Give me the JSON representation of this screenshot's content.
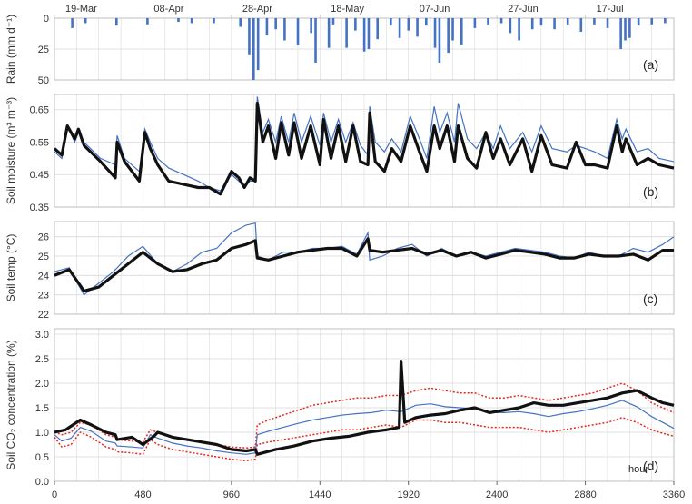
{
  "colors": {
    "bars": "#4472C4",
    "model": "#4472C4",
    "observed": "#111111",
    "uncertainty": "#E8251B",
    "grid": "#d9d9d9",
    "frame": "#bfbfbf",
    "date_grid": "#c8c8c8"
  },
  "x_axis": {
    "label": "hour",
    "range": [
      0,
      3360
    ],
    "ticks": [
      0,
      480,
      960,
      1440,
      1920,
      2400,
      2880,
      3360
    ],
    "date_ticks": [
      "19-Mar",
      "08-Apr",
      "28-Apr",
      "18-May",
      "07-Jun",
      "27-Jun",
      "17-Jul"
    ],
    "date_tick_hours": [
      0,
      480,
      960,
      1440,
      1920,
      2400,
      2880
    ]
  },
  "chart_data": [
    {
      "type": "bar",
      "panel": "(a)",
      "ylabel": "Rain (mm d⁻¹)",
      "ylim": [
        0,
        50
      ],
      "yticks": [
        0,
        25,
        50
      ],
      "inverted": true,
      "x_unit": "hour",
      "x": [
        96,
        168,
        336,
        504,
        672,
        744,
        864,
        1008,
        1056,
        1080,
        1104,
        1152,
        1200,
        1248,
        1320,
        1392,
        1416,
        1488,
        1512,
        1584,
        1632,
        1680,
        1704,
        1752,
        1824,
        1872,
        1920,
        1968,
        2016,
        2064,
        2088,
        2136,
        2160,
        2208,
        2280,
        2352,
        2424,
        2472,
        2520,
        2592,
        2640,
        2712,
        2784,
        2856,
        2928,
        3000,
        3072,
        3096,
        3120,
        3168,
        3240,
        3312
      ],
      "values": [
        8,
        4,
        6,
        5,
        3,
        4,
        4,
        7,
        30,
        50,
        42,
        14,
        9,
        18,
        22,
        12,
        36,
        24,
        5,
        24,
        10,
        27,
        25,
        17,
        6,
        16,
        10,
        15,
        6,
        24,
        36,
        28,
        18,
        22,
        8,
        5,
        4,
        12,
        18,
        9,
        6,
        9,
        5,
        11,
        5,
        8,
        25,
        18,
        16,
        6,
        5,
        4
      ]
    },
    {
      "type": "line",
      "panel": "(b)",
      "ylabel": "Soil moisture (m³ m⁻³)",
      "ylim": [
        0.35,
        0.68
      ],
      "yticks": [
        0.35,
        0.45,
        0.55,
        0.65
      ],
      "series": [
        {
          "style": "model",
          "x": [
            0,
            40,
            70,
            110,
            130,
            160,
            250,
            330,
            340,
            380,
            460,
            490,
            520,
            560,
            620,
            700,
            780,
            840,
            900,
            960,
            1000,
            1030,
            1060,
            1090,
            1100,
            1130,
            1160,
            1200,
            1230,
            1270,
            1300,
            1340,
            1390,
            1440,
            1460,
            1500,
            1540,
            1580,
            1620,
            1660,
            1700,
            1710,
            1740,
            1790,
            1830,
            1880,
            1930,
            1980,
            2020,
            2060,
            2090,
            2130,
            2170,
            2190,
            2240,
            2290,
            2340,
            2380,
            2420,
            2470,
            2540,
            2590,
            2640,
            2700,
            2780,
            2830,
            2880,
            2930,
            3000,
            3050,
            3080,
            3100,
            3160,
            3220,
            3280,
            3360
          ],
          "y": [
            0.52,
            0.5,
            0.6,
            0.55,
            0.58,
            0.55,
            0.5,
            0.48,
            0.57,
            0.5,
            0.46,
            0.59,
            0.55,
            0.5,
            0.47,
            0.45,
            0.43,
            0.41,
            0.4,
            0.45,
            0.43,
            0.41,
            0.43,
            0.43,
            0.69,
            0.58,
            0.62,
            0.55,
            0.63,
            0.55,
            0.64,
            0.55,
            0.63,
            0.54,
            0.64,
            0.55,
            0.62,
            0.55,
            0.61,
            0.54,
            0.51,
            0.66,
            0.55,
            0.52,
            0.56,
            0.52,
            0.63,
            0.56,
            0.5,
            0.66,
            0.58,
            0.64,
            0.55,
            0.67,
            0.56,
            0.53,
            0.58,
            0.53,
            0.6,
            0.53,
            0.58,
            0.52,
            0.6,
            0.53,
            0.52,
            0.54,
            0.53,
            0.52,
            0.5,
            0.62,
            0.56,
            0.59,
            0.52,
            0.53,
            0.5,
            0.49
          ]
        },
        {
          "style": "observed",
          "x": [
            0,
            40,
            70,
            110,
            130,
            160,
            250,
            330,
            340,
            380,
            460,
            490,
            520,
            560,
            620,
            700,
            780,
            840,
            900,
            960,
            1000,
            1030,
            1060,
            1090,
            1100,
            1130,
            1160,
            1200,
            1230,
            1270,
            1300,
            1340,
            1390,
            1440,
            1460,
            1500,
            1540,
            1580,
            1620,
            1660,
            1700,
            1710,
            1740,
            1790,
            1830,
            1880,
            1930,
            1980,
            2020,
            2060,
            2090,
            2130,
            2170,
            2190,
            2240,
            2290,
            2340,
            2380,
            2420,
            2470,
            2540,
            2590,
            2640,
            2700,
            2780,
            2830,
            2880,
            2930,
            3000,
            3050,
            3080,
            3100,
            3160,
            3220,
            3280,
            3360
          ],
          "y": [
            0.53,
            0.51,
            0.6,
            0.56,
            0.59,
            0.54,
            0.49,
            0.44,
            0.55,
            0.49,
            0.43,
            0.58,
            0.53,
            0.48,
            0.43,
            0.42,
            0.41,
            0.41,
            0.39,
            0.46,
            0.44,
            0.41,
            0.44,
            0.43,
            0.67,
            0.55,
            0.6,
            0.5,
            0.61,
            0.51,
            0.61,
            0.5,
            0.6,
            0.48,
            0.62,
            0.5,
            0.6,
            0.49,
            0.6,
            0.49,
            0.48,
            0.64,
            0.49,
            0.46,
            0.53,
            0.49,
            0.6,
            0.52,
            0.46,
            0.6,
            0.53,
            0.6,
            0.49,
            0.6,
            0.5,
            0.47,
            0.58,
            0.5,
            0.56,
            0.48,
            0.56,
            0.46,
            0.57,
            0.48,
            0.47,
            0.55,
            0.48,
            0.48,
            0.47,
            0.6,
            0.52,
            0.56,
            0.48,
            0.5,
            0.48,
            0.47
          ]
        }
      ]
    },
    {
      "type": "line",
      "panel": "(c)",
      "ylabel": "Soil temp (°C)",
      "ylim": [
        22,
        26.5
      ],
      "yticks": [
        22,
        23,
        24,
        25,
        26
      ],
      "series": [
        {
          "style": "model",
          "x": [
            0,
            80,
            160,
            240,
            320,
            400,
            480,
            560,
            640,
            720,
            800,
            880,
            960,
            1040,
            1090,
            1100,
            1160,
            1240,
            1320,
            1400,
            1480,
            1560,
            1640,
            1700,
            1710,
            1780,
            1860,
            1940,
            2020,
            2100,
            2180,
            2260,
            2340,
            2420,
            2500,
            2580,
            2660,
            2740,
            2820,
            2900,
            2980,
            3060,
            3140,
            3220,
            3300,
            3360
          ],
          "y": [
            24.2,
            24.4,
            23.0,
            23.6,
            24.2,
            25.0,
            25.5,
            24.6,
            24.2,
            24.6,
            25.2,
            25.4,
            26.2,
            26.6,
            26.7,
            25.0,
            24.8,
            25.2,
            25.2,
            25.4,
            25.4,
            25.5,
            25.1,
            26.2,
            24.8,
            25.0,
            25.4,
            25.6,
            25.0,
            25.4,
            25.0,
            25.2,
            25.0,
            25.2,
            25.4,
            25.3,
            25.2,
            25.0,
            24.9,
            25.2,
            25.0,
            25.0,
            25.4,
            25.2,
            25.6,
            26.0
          ]
        },
        {
          "style": "observed",
          "x": [
            0,
            80,
            160,
            240,
            320,
            400,
            480,
            560,
            640,
            720,
            800,
            880,
            960,
            1040,
            1090,
            1100,
            1160,
            1240,
            1320,
            1400,
            1480,
            1560,
            1640,
            1700,
            1710,
            1780,
            1860,
            1940,
            2020,
            2100,
            2180,
            2260,
            2340,
            2420,
            2500,
            2580,
            2660,
            2740,
            2820,
            2900,
            2980,
            3060,
            3140,
            3220,
            3300,
            3360
          ],
          "y": [
            24.0,
            24.3,
            23.2,
            23.4,
            24.0,
            24.6,
            25.2,
            24.6,
            24.2,
            24.3,
            24.6,
            24.8,
            25.4,
            25.6,
            25.8,
            24.9,
            24.8,
            25.0,
            25.2,
            25.3,
            25.4,
            25.4,
            25.0,
            25.9,
            25.3,
            25.2,
            25.3,
            25.4,
            25.1,
            25.3,
            25.0,
            25.2,
            24.9,
            25.1,
            25.3,
            25.2,
            25.1,
            24.9,
            24.9,
            25.1,
            25.0,
            25.0,
            25.1,
            24.8,
            25.3,
            25.3
          ]
        }
      ]
    },
    {
      "type": "line",
      "panel": "(d)",
      "ylabel": "Soil CO₂ concentration (%)",
      "ylim": [
        0,
        3.0
      ],
      "yticks": [
        0.0,
        0.5,
        1.0,
        1.5,
        2.0,
        2.5,
        3.0
      ],
      "series": [
        {
          "style": "uncertainty",
          "x": [
            0,
            40,
            90,
            140,
            200,
            280,
            330,
            340,
            420,
            480,
            520,
            560,
            640,
            720,
            800,
            880,
            960,
            1040,
            1090,
            1100,
            1160,
            1240,
            1320,
            1400,
            1480,
            1560,
            1640,
            1720,
            1800,
            1880,
            1960,
            2040,
            2120,
            2200,
            2280,
            2360,
            2440,
            2520,
            2600,
            2680,
            2760,
            2840,
            2920,
            3000,
            3080,
            3160,
            3240,
            3300,
            3360
          ],
          "y": [
            1.0,
            0.95,
            1.0,
            1.2,
            1.15,
            0.95,
            0.9,
            0.85,
            0.82,
            0.8,
            1.05,
            1.0,
            0.9,
            0.85,
            0.8,
            0.75,
            0.7,
            0.68,
            0.7,
            1.15,
            1.25,
            1.35,
            1.45,
            1.55,
            1.6,
            1.65,
            1.7,
            1.7,
            1.75,
            1.75,
            1.85,
            1.9,
            1.85,
            1.8,
            1.8,
            1.7,
            1.7,
            1.75,
            1.7,
            1.65,
            1.7,
            1.75,
            1.8,
            1.9,
            2.0,
            1.85,
            1.6,
            1.5,
            1.4
          ]
        },
        {
          "style": "uncertainty",
          "x": [
            0,
            40,
            90,
            140,
            200,
            280,
            330,
            340,
            420,
            480,
            520,
            560,
            640,
            720,
            800,
            880,
            960,
            1040,
            1090,
            1100,
            1160,
            1240,
            1320,
            1400,
            1480,
            1560,
            1640,
            1720,
            1800,
            1880,
            1960,
            2040,
            2120,
            2200,
            2280,
            2360,
            2440,
            2520,
            2600,
            2680,
            2760,
            2840,
            2920,
            3000,
            3080,
            3160,
            3240,
            3300,
            3360
          ],
          "y": [
            0.9,
            0.7,
            0.75,
            1.0,
            0.9,
            0.7,
            0.65,
            0.6,
            0.58,
            0.55,
            0.85,
            0.75,
            0.65,
            0.6,
            0.55,
            0.5,
            0.45,
            0.42,
            0.45,
            0.75,
            0.8,
            0.85,
            0.9,
            0.95,
            1.0,
            1.05,
            1.05,
            1.1,
            1.15,
            1.1,
            1.25,
            1.25,
            1.2,
            1.2,
            1.15,
            1.1,
            1.1,
            1.1,
            1.05,
            1.0,
            1.05,
            1.1,
            1.15,
            1.2,
            1.3,
            1.2,
            1.05,
            0.98,
            0.92
          ]
        },
        {
          "style": "model",
          "x": [
            0,
            40,
            90,
            140,
            200,
            280,
            330,
            340,
            420,
            480,
            520,
            560,
            640,
            720,
            800,
            880,
            960,
            1040,
            1090,
            1100,
            1160,
            1240,
            1320,
            1400,
            1480,
            1560,
            1640,
            1720,
            1800,
            1880,
            1960,
            2040,
            2120,
            2200,
            2280,
            2360,
            2440,
            2520,
            2600,
            2680,
            2760,
            2840,
            2920,
            3000,
            3080,
            3160,
            3240,
            3300,
            3360
          ],
          "y": [
            0.95,
            0.82,
            0.88,
            1.1,
            1.02,
            0.82,
            0.78,
            0.72,
            0.7,
            0.68,
            0.95,
            0.88,
            0.78,
            0.72,
            0.68,
            0.62,
            0.58,
            0.55,
            0.58,
            0.95,
            1.02,
            1.1,
            1.18,
            1.25,
            1.3,
            1.35,
            1.38,
            1.4,
            1.45,
            1.42,
            1.55,
            1.58,
            1.52,
            1.5,
            1.48,
            1.4,
            1.4,
            1.42,
            1.38,
            1.32,
            1.38,
            1.42,
            1.48,
            1.55,
            1.65,
            1.52,
            1.32,
            1.2,
            1.08
          ]
        },
        {
          "style": "observed",
          "x": [
            0,
            60,
            140,
            200,
            280,
            330,
            340,
            420,
            480,
            540,
            560,
            640,
            720,
            800,
            880,
            960,
            1040,
            1090,
            1100,
            1200,
            1300,
            1400,
            1500,
            1600,
            1700,
            1800,
            1870,
            1880,
            1900,
            1960,
            2040,
            2120,
            2200,
            2280,
            2360,
            2440,
            2520,
            2600,
            2680,
            2760,
            2840,
            2920,
            3000,
            3080,
            3160,
            3240,
            3300,
            3360
          ],
          "y": [
            1.0,
            1.05,
            1.25,
            1.15,
            1.0,
            0.95,
            0.85,
            0.9,
            0.75,
            0.92,
            1.0,
            0.9,
            0.85,
            0.8,
            0.75,
            0.65,
            0.62,
            0.65,
            0.55,
            0.65,
            0.72,
            0.82,
            0.88,
            0.92,
            1.0,
            1.05,
            1.1,
            2.45,
            1.2,
            1.3,
            1.35,
            1.38,
            1.45,
            1.5,
            1.4,
            1.45,
            1.5,
            1.6,
            1.55,
            1.55,
            1.6,
            1.65,
            1.7,
            1.8,
            1.85,
            1.7,
            1.6,
            1.55
          ]
        }
      ]
    }
  ]
}
